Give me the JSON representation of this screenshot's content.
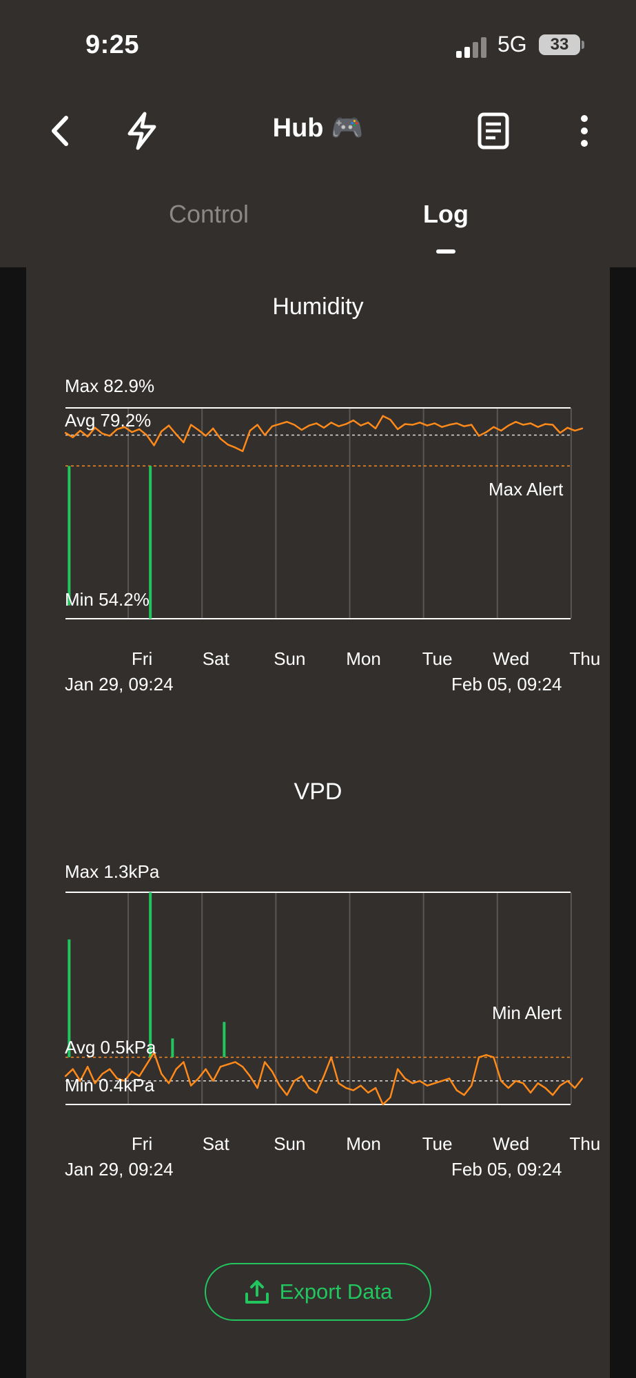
{
  "status_bar": {
    "time": "9:25",
    "network": "5G",
    "battery": "33"
  },
  "header": {
    "title": "Hub 🎮",
    "icons": [
      "back-icon",
      "lightning-icon",
      "document-icon",
      "more-icon"
    ]
  },
  "tabs": [
    {
      "label": "Control",
      "active": false
    },
    {
      "label": "Log",
      "active": true
    }
  ],
  "colors": {
    "line": "#ff8a1a",
    "below_range": "#22c55e",
    "background": "#322f2d",
    "accent": "#22c55e"
  },
  "charts": {
    "humidity": {
      "title": "Humidity",
      "max_label": "Max 82.9%",
      "avg_label": "Avg 79.2%",
      "min_label": "Min 54.2%",
      "alert_label": "Max Alert",
      "days": [
        "Fri",
        "Sat",
        "Sun",
        "Mon",
        "Tue",
        "Wed",
        "Thu"
      ],
      "start": "Jan 29, 09:24",
      "end": "Feb 05, 09:24"
    },
    "vpd": {
      "title": "VPD",
      "max_label": "Max 1.3kPa",
      "avg_label": "Avg 0.5kPa",
      "min_label": "Min 0.4kPa",
      "alert_label": "Min Alert",
      "days": [
        "Fri",
        "Sat",
        "Sun",
        "Mon",
        "Tue",
        "Wed",
        "Thu"
      ],
      "start": "Jan 29, 09:24",
      "end": "Feb 05, 09:24"
    }
  },
  "chart_data": [
    {
      "type": "line",
      "title": "Humidity",
      "unit": "%",
      "x_range": [
        "Jan 29, 09:24",
        "Feb 05, 09:24"
      ],
      "x_ticks": [
        "Fri",
        "Sat",
        "Sun",
        "Mon",
        "Tue",
        "Wed",
        "Thu"
      ],
      "ylim": [
        54.2,
        82.9
      ],
      "max": 82.9,
      "avg": 79.2,
      "min": 54.2,
      "max_alert": 75.0,
      "x_days": [
        0.0,
        0.1,
        0.2,
        0.3,
        0.4,
        0.5,
        0.6,
        0.7,
        0.8,
        0.9,
        1.0,
        1.1,
        1.2,
        1.3,
        1.4,
        1.5,
        1.6,
        1.7,
        1.8,
        1.9,
        2.0,
        2.1,
        2.2,
        2.3,
        2.4,
        2.5,
        2.6,
        2.7,
        2.8,
        2.9,
        3.0,
        3.1,
        3.2,
        3.3,
        3.4,
        3.5,
        3.6,
        3.7,
        3.8,
        3.9,
        4.0,
        4.1,
        4.2,
        4.3,
        4.4,
        4.5,
        4.6,
        4.7,
        4.8,
        4.9,
        5.0,
        5.1,
        5.2,
        5.3,
        5.4,
        5.5,
        5.6,
        5.7,
        5.8,
        5.9,
        6.0,
        6.1,
        6.2,
        6.3,
        6.4,
        6.5,
        6.6,
        6.7,
        6.8,
        6.9,
        7.0
      ],
      "values": [
        79.5,
        78.9,
        79.8,
        79.0,
        80.2,
        79.4,
        79.1,
        80.0,
        80.3,
        79.6,
        80.0,
        79.2,
        77.8,
        79.7,
        80.5,
        79.3,
        78.2,
        80.6,
        79.9,
        79.1,
        80.1,
        78.7,
        77.9,
        77.5,
        77.0,
        79.8,
        80.6,
        79.2,
        80.4,
        80.7,
        81.0,
        80.6,
        79.9,
        80.5,
        80.8,
        80.2,
        80.9,
        80.4,
        80.7,
        81.2,
        80.5,
        80.9,
        80.1,
        81.8,
        81.3,
        80.0,
        80.7,
        80.6,
        80.9,
        80.5,
        80.8,
        80.3,
        80.6,
        80.8,
        80.4,
        80.6,
        79.1,
        79.6,
        80.3,
        79.8,
        80.5,
        81.0,
        80.6,
        80.8,
        80.3,
        80.7,
        80.6,
        79.5,
        80.2,
        79.8,
        80.1
      ],
      "dips_below_range": [
        {
          "x_day": 0.05,
          "value": 56.0
        },
        {
          "x_day": 1.15,
          "value": 54.2
        }
      ]
    },
    {
      "type": "line",
      "title": "VPD",
      "unit": "kPa",
      "x_range": [
        "Jan 29, 09:24",
        "Feb 05, 09:24"
      ],
      "x_ticks": [
        "Fri",
        "Sat",
        "Sun",
        "Mon",
        "Tue",
        "Wed",
        "Thu"
      ],
      "ylim": [
        0.4,
        1.3
      ],
      "max": 1.3,
      "avg": 0.5,
      "min": 0.4,
      "min_alert": 0.6,
      "x_days": [
        0.0,
        0.1,
        0.2,
        0.3,
        0.4,
        0.5,
        0.6,
        0.7,
        0.8,
        0.9,
        1.0,
        1.1,
        1.2,
        1.3,
        1.4,
        1.5,
        1.6,
        1.7,
        1.8,
        1.9,
        2.0,
        2.1,
        2.2,
        2.3,
        2.4,
        2.5,
        2.6,
        2.7,
        2.8,
        2.9,
        3.0,
        3.1,
        3.2,
        3.3,
        3.4,
        3.5,
        3.6,
        3.7,
        3.8,
        3.9,
        4.0,
        4.1,
        4.2,
        4.3,
        4.4,
        4.5,
        4.6,
        4.7,
        4.8,
        4.9,
        5.0,
        5.1,
        5.2,
        5.3,
        5.4,
        5.5,
        5.6,
        5.7,
        5.8,
        5.9,
        6.0,
        6.1,
        6.2,
        6.3,
        6.4,
        6.5,
        6.6,
        6.7,
        6.8,
        6.9,
        7.0
      ],
      "values": [
        0.52,
        0.55,
        0.5,
        0.56,
        0.49,
        0.53,
        0.55,
        0.51,
        0.5,
        0.54,
        0.52,
        0.57,
        0.62,
        0.53,
        0.49,
        0.55,
        0.58,
        0.48,
        0.51,
        0.55,
        0.5,
        0.56,
        0.57,
        0.58,
        0.56,
        0.52,
        0.47,
        0.58,
        0.54,
        0.48,
        0.44,
        0.5,
        0.52,
        0.47,
        0.45,
        0.52,
        0.6,
        0.49,
        0.47,
        0.46,
        0.48,
        0.45,
        0.47,
        0.4,
        0.43,
        0.55,
        0.51,
        0.49,
        0.5,
        0.48,
        0.49,
        0.5,
        0.51,
        0.46,
        0.44,
        0.48,
        0.6,
        0.61,
        0.6,
        0.5,
        0.47,
        0.5,
        0.49,
        0.45,
        0.49,
        0.47,
        0.44,
        0.48,
        0.5,
        0.47,
        0.51
      ],
      "spikes_above_range": [
        {
          "x_day": 0.05,
          "value": 1.1
        },
        {
          "x_day": 1.15,
          "value": 1.3
        },
        {
          "x_day": 1.45,
          "value": 0.68
        },
        {
          "x_day": 2.15,
          "value": 0.75
        }
      ]
    }
  ],
  "export": {
    "label": "Export Data"
  }
}
